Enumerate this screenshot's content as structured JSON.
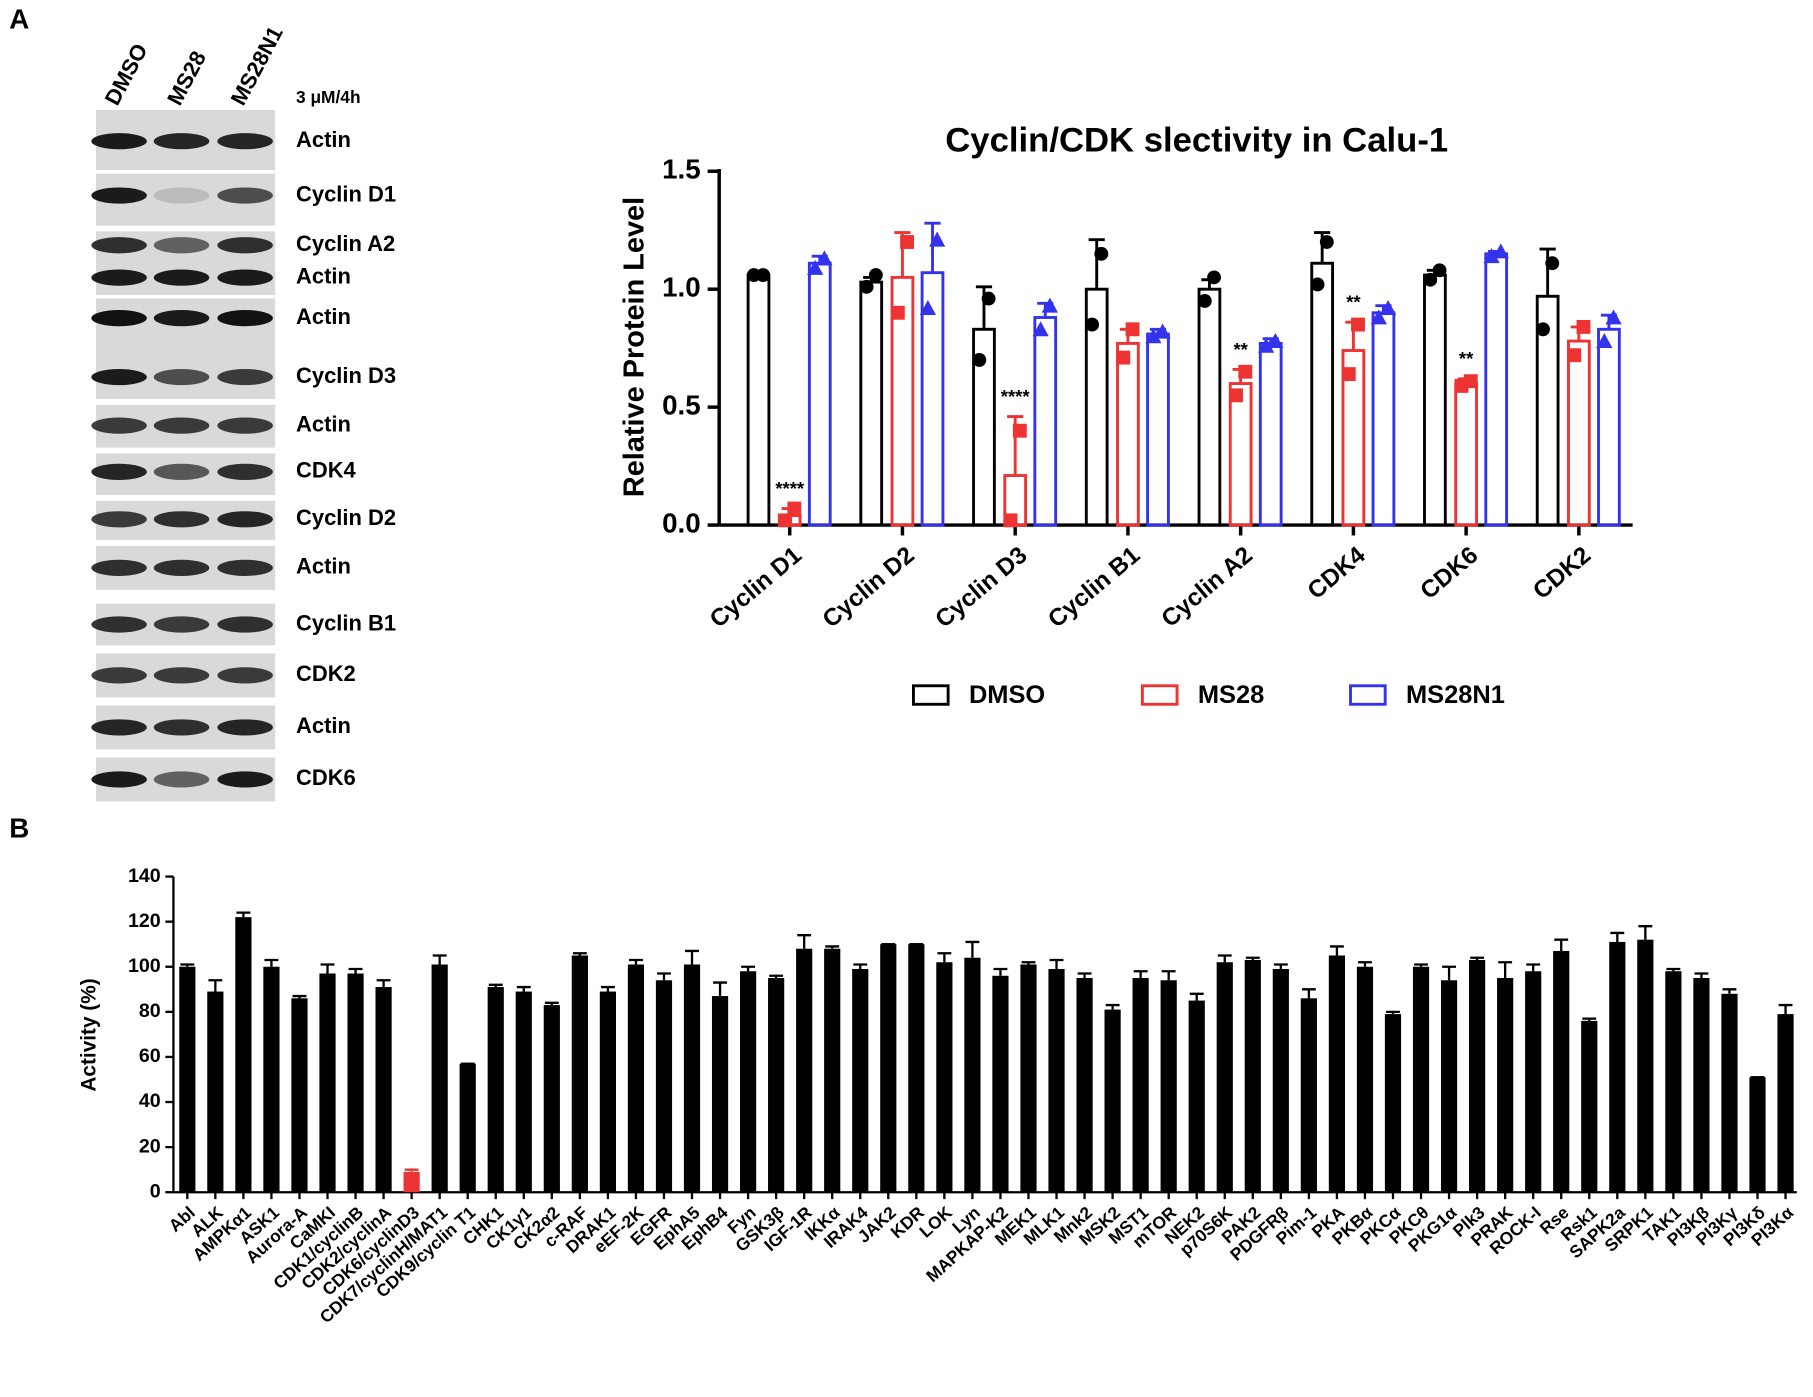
{
  "panels": [
    "A",
    "B"
  ],
  "blot": {
    "lanes": [
      "DMSO",
      "MS28",
      "MS28N1"
    ],
    "condition": "3 μM/4h",
    "bands": [
      "Actin",
      "Cyclin D1",
      "Cyclin A2",
      "Actin",
      "Actin",
      "Cyclin D3",
      "Actin",
      "CDK4",
      "Cyclin D2",
      "Actin",
      "Cyclin B1",
      "CDK2",
      "Actin",
      "CDK6"
    ]
  },
  "chart_data": [
    {
      "type": "bar",
      "title": "Cyclin/CDK slectivity in Calu-1",
      "y_label": "Relative Protein Level",
      "categories": [
        "Cyclin D1",
        "Cyclin D2",
        "Cyclin D3",
        "Cyclin B1",
        "Cyclin A2",
        "CDK4",
        "CDK6",
        "CDK2"
      ],
      "ylim": [
        0,
        1.5
      ],
      "yticks": [
        {
          "value": 0,
          "label": "0.0"
        },
        {
          "value": 0.5,
          "label": "0.5"
        },
        {
          "value": 1.0,
          "label": "1.0"
        },
        {
          "value": 1.5,
          "label": "1.5"
        }
      ],
      "legend": "bottom",
      "series": [
        {
          "name": "DMSO",
          "color": "#000000",
          "marker": "circle",
          "values": [
            1.06,
            1.03,
            0.83,
            1.0,
            1.0,
            1.11,
            1.06,
            0.97
          ],
          "errors": [
            0.01,
            0.02,
            0.18,
            0.21,
            0.04,
            0.13,
            0.02,
            0.2
          ],
          "points": [
            [
              1.06,
              1.06
            ],
            [
              1.06,
              1.01
            ],
            [
              0.96,
              0.7
            ],
            [
              1.15,
              0.85
            ],
            [
              1.05,
              0.95
            ],
            [
              1.2,
              1.02
            ],
            [
              1.08,
              1.04
            ],
            [
              1.11,
              0.83
            ]
          ]
        },
        {
          "name": "MS28",
          "color": "#ee3333",
          "marker": "square",
          "values": [
            0.04,
            1.05,
            0.21,
            0.77,
            0.6,
            0.74,
            0.6,
            0.78
          ],
          "errors": [
            0.03,
            0.19,
            0.25,
            0.06,
            0.06,
            0.12,
            0.02,
            0.06
          ],
          "points": [
            [
              0.07,
              0.02
            ],
            [
              1.2,
              0.9
            ],
            [
              0.4,
              0.02
            ],
            [
              0.83,
              0.71
            ],
            [
              0.65,
              0.55
            ],
            [
              0.85,
              0.64
            ],
            [
              0.61,
              0.59
            ],
            [
              0.84,
              0.72
            ]
          ],
          "significance": [
            "****",
            null,
            "****",
            null,
            "**",
            "**",
            "**",
            null
          ]
        },
        {
          "name": "MS28N1",
          "color": "#3333ee",
          "marker": "triangle",
          "values": [
            1.11,
            1.07,
            0.88,
            0.81,
            0.77,
            0.9,
            1.15,
            0.83
          ],
          "errors": [
            0.03,
            0.21,
            0.06,
            0.02,
            0.02,
            0.03,
            0.01,
            0.06
          ],
          "points": [
            [
              1.13,
              1.09
            ],
            [
              1.21,
              0.92
            ],
            [
              0.93,
              0.83
            ],
            [
              0.82,
              0.8
            ],
            [
              0.78,
              0.76
            ],
            [
              0.92,
              0.88
            ],
            [
              1.16,
              1.14
            ],
            [
              0.88,
              0.78
            ]
          ]
        }
      ]
    },
    {
      "type": "bar",
      "y_label": "Activity (%)",
      "categories": [
        "Abl",
        "ALK",
        "AMPKα1",
        "ASK1",
        "Aurora-A",
        "CaMKI",
        "CDK1/cyclinB",
        "CDK2/cyclinA",
        "CDK6/cyclinD3",
        "CDK7/cyclinH/MAT1",
        "CDK9/cyclin T1",
        "CHK1",
        "CK1γ1",
        "CK2α2",
        "c-RAF",
        "DRAK1",
        "eEF-2K",
        "EGFR",
        "EphA5",
        "EphB4",
        "Fyn",
        "GSK3β",
        "IGF-1R",
        "IKKα",
        "IRAK4",
        "JAK2",
        "KDR",
        "LOK",
        "Lyn",
        "MAPKAP-K2",
        "MEK1",
        "MLK1",
        "Mnk2",
        "MSK2",
        "MST1",
        "mTOR",
        "NEK2",
        "p70S6K",
        "PAK2",
        "PDGFRβ",
        "Pim-1",
        "PKA",
        "PKBα",
        "PKCα",
        "PKCθ",
        "PKG1α",
        "Plk3",
        "PRAK",
        "ROCK-I",
        "Rse",
        "Rsk1",
        "SAPK2a",
        "SRPK1",
        "TAK1",
        "PI3Kβ",
        "PI3Kγ",
        "PI3Kδ",
        "PI3Kα"
      ],
      "values": [
        100,
        89,
        122,
        100,
        86,
        97,
        97,
        91,
        9,
        101,
        57,
        91,
        89,
        83,
        105,
        89,
        101,
        94,
        101,
        87,
        98,
        95,
        108,
        108,
        99,
        110,
        110,
        102,
        104,
        96,
        101,
        99,
        95,
        81,
        95,
        94,
        85,
        102,
        103,
        99,
        86,
        105,
        100,
        79,
        100,
        94,
        103,
        95,
        98,
        107,
        76,
        111,
        112,
        98,
        95,
        88,
        51,
        79
      ],
      "errors": [
        1,
        5,
        2,
        3,
        1,
        4,
        2,
        3,
        1,
        4,
        0,
        1,
        2,
        1,
        1,
        2,
        2,
        3,
        6,
        6,
        2,
        1,
        6,
        1,
        2,
        0,
        0,
        4,
        7,
        3,
        1,
        4,
        2,
        2,
        3,
        4,
        3,
        3,
        1,
        2,
        4,
        4,
        2,
        1,
        1,
        6,
        1,
        7,
        3,
        5,
        1,
        4,
        6,
        1,
        2,
        2,
        0,
        4
      ],
      "colors": [
        "#000000",
        "#000000",
        "#000000",
        "#000000",
        "#000000",
        "#000000",
        "#000000",
        "#000000",
        "#ee3333",
        "#000000",
        "#000000",
        "#000000",
        "#000000",
        "#000000",
        "#000000",
        "#000000",
        "#000000",
        "#000000",
        "#000000",
        "#000000",
        "#000000",
        "#000000",
        "#000000",
        "#000000",
        "#000000",
        "#000000",
        "#000000",
        "#000000",
        "#000000",
        "#000000",
        "#000000",
        "#000000",
        "#000000",
        "#000000",
        "#000000",
        "#000000",
        "#000000",
        "#000000",
        "#000000",
        "#000000",
        "#000000",
        "#000000",
        "#000000",
        "#000000",
        "#000000",
        "#000000",
        "#000000",
        "#000000",
        "#000000",
        "#000000",
        "#000000",
        "#000000",
        "#000000",
        "#000000",
        "#000000",
        "#000000",
        "#000000",
        "#000000"
      ],
      "ylim": [
        0,
        140
      ],
      "yticks": [
        0,
        20,
        40,
        60,
        80,
        100,
        120,
        140
      ]
    }
  ]
}
